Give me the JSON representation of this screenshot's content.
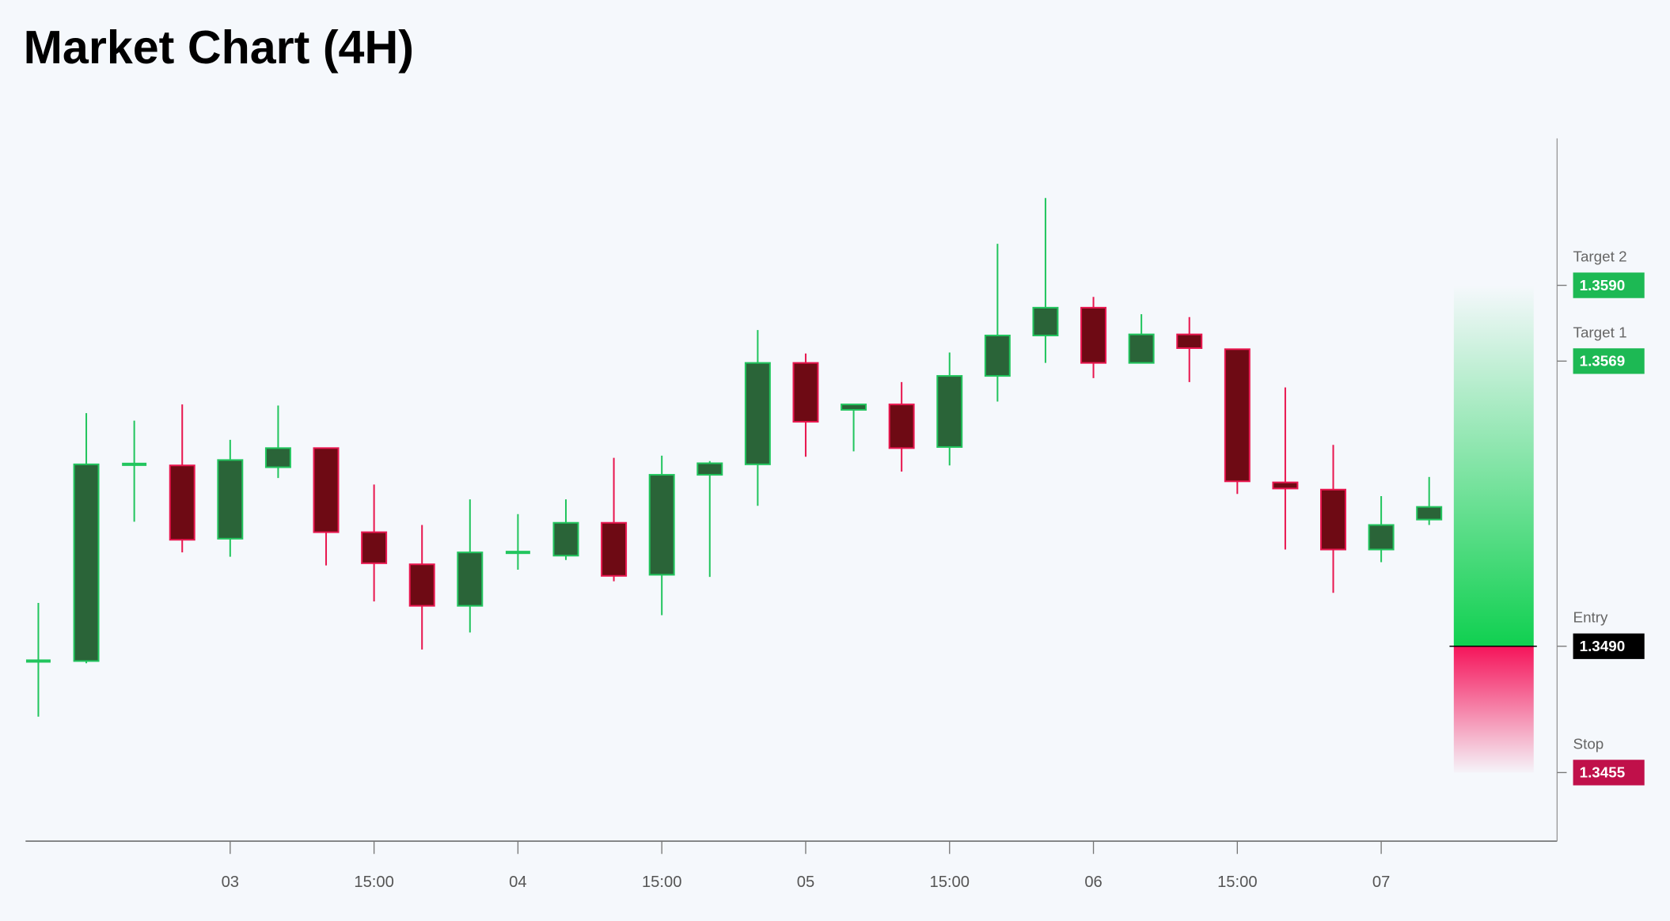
{
  "chart_data": {
    "type": "candlestick",
    "title": "Market Chart (4H)",
    "categories": [
      null,
      null,
      null,
      null,
      "03",
      null,
      null,
      "15:00",
      null,
      null,
      "04",
      null,
      null,
      "15:00",
      null,
      null,
      "05",
      null,
      null,
      "15:00",
      null,
      null,
      "06",
      null,
      null,
      "15:00",
      null,
      null,
      "07",
      null
    ],
    "open": [
      1.34859,
      1.34859,
      1.35404,
      1.35401,
      1.35198,
      1.35396,
      1.35449,
      1.35216,
      1.35127,
      1.35012,
      1.3516,
      1.35151,
      1.35242,
      1.35098,
      1.35375,
      1.35404,
      1.35685,
      1.35555,
      1.3557,
      1.35452,
      1.35649,
      1.35761,
      1.35838,
      1.35685,
      1.35764,
      1.35723,
      1.35354,
      1.35334,
      1.35168,
      1.35251
    ],
    "high": [
      1.3502,
      1.35546,
      1.35525,
      1.3557,
      1.35472,
      1.35567,
      1.35449,
      1.35348,
      1.35236,
      1.35307,
      1.35266,
      1.35307,
      1.35422,
      1.35428,
      1.35413,
      1.35776,
      1.35711,
      1.3557,
      1.35632,
      1.35714,
      1.36015,
      1.36142,
      1.35868,
      1.3582,
      1.35812,
      1.35723,
      1.35617,
      1.35458,
      1.35316,
      1.35369
    ],
    "low": [
      1.34705,
      1.34853,
      1.35245,
      1.3516,
      1.35148,
      1.35366,
      1.35124,
      1.35024,
      1.34891,
      1.34938,
      1.35112,
      1.35139,
      1.3508,
      1.34986,
      1.35092,
      1.35289,
      1.35425,
      1.3544,
      1.35384,
      1.35401,
      1.35578,
      1.35685,
      1.35643,
      1.35685,
      1.35632,
      1.35322,
      1.35168,
      1.35048,
      1.35133,
      1.35236
    ],
    "close": [
      1.34859,
      1.35404,
      1.35404,
      1.35195,
      1.35416,
      1.35449,
      1.35216,
      1.3513,
      1.35012,
      1.3516,
      1.3516,
      1.35242,
      1.35095,
      1.35375,
      1.35407,
      1.35685,
      1.35522,
      1.3557,
      1.35449,
      1.35649,
      1.35761,
      1.35838,
      1.35685,
      1.35764,
      1.35726,
      1.35357,
      1.35337,
      1.35168,
      1.35236,
      1.35286
    ],
    "up_color": "#22c55e",
    "up_fill": "#2a6438",
    "down_color": "#e8174f",
    "down_fill": "#6e0a14",
    "ylim": [
      1.3436,
      1.36307
    ],
    "levels": [
      {
        "name": "Target 2",
        "value": 1.359,
        "value_label": "1.3590",
        "color": "#1db954"
      },
      {
        "name": "Target 1",
        "value": 1.3569,
        "value_label": "1.3569",
        "color": "#1db954"
      },
      {
        "name": "Entry",
        "value": 1.349,
        "value_label": "1.3490",
        "color": "#000000"
      },
      {
        "name": "Stop",
        "value": 1.3455,
        "value_label": "1.3455",
        "color": "#c0104a"
      }
    ]
  }
}
